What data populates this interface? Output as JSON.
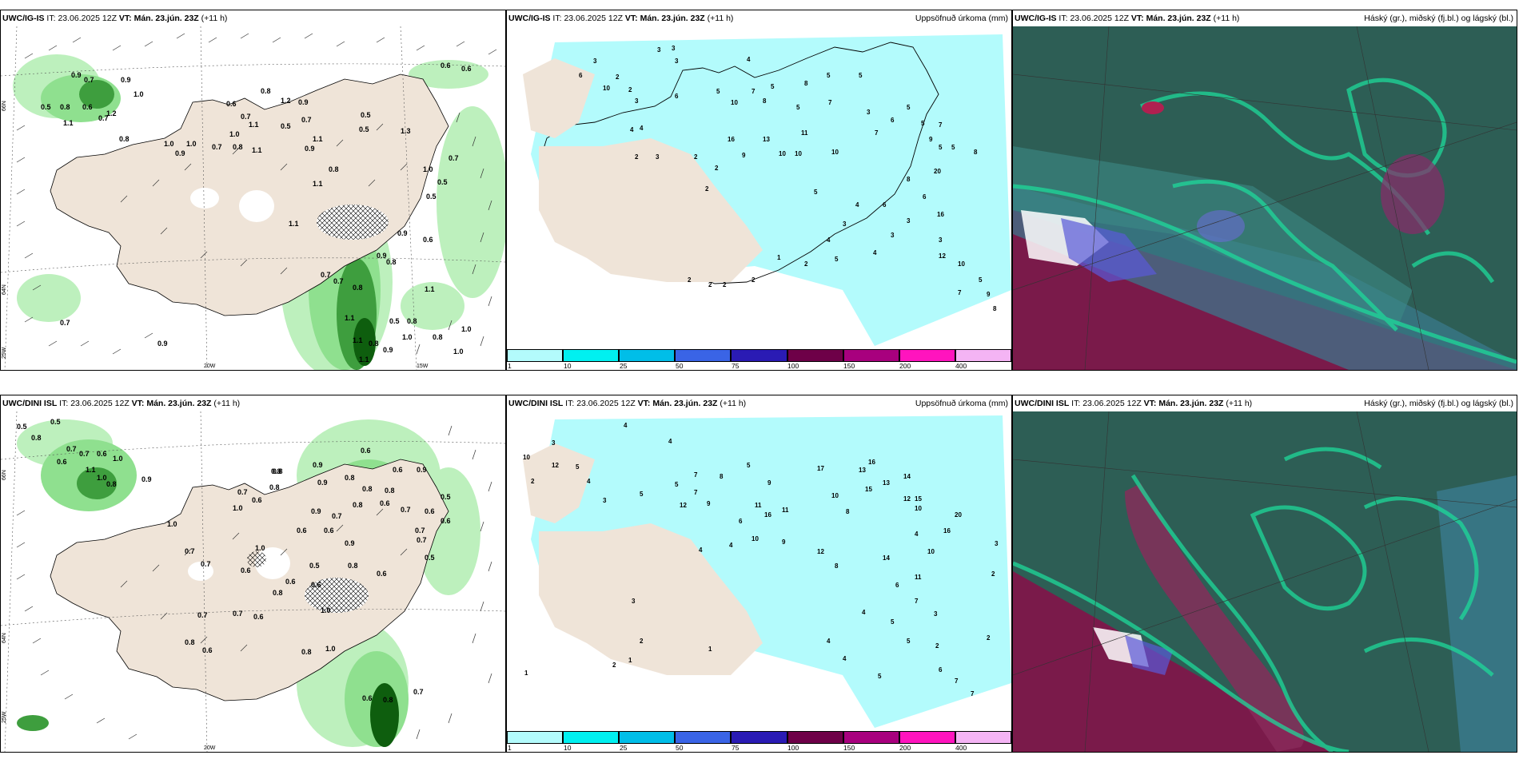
{
  "panels": {
    "tl": {
      "model": "UWC/IG-IS",
      "it_label": "IT:",
      "it_value": "23.06.2025 12Z",
      "vt_label": "VT:",
      "vt_value": "Mán. 23.jún. 23Z",
      "lead": "(+11 h)",
      "right_title": ""
    },
    "tm": {
      "model": "UWC/IG-IS",
      "it_label": "IT:",
      "it_value": "23.06.2025 12Z",
      "vt_label": "VT:",
      "vt_value": "Mán. 23.jún. 23Z",
      "lead": "(+11 h)",
      "right_title": "Uppsöfnuð úrkoma (mm)"
    },
    "tr": {
      "model": "UWC/IG-IS",
      "it_label": "IT:",
      "it_value": "23.06.2025 12Z",
      "vt_label": "VT:",
      "vt_value": "Mán. 23.jún. 23Z",
      "lead": "(+11 h)",
      "right_title": "Háský (gr.), miðský (fj.bl.) og lágský (bl.)"
    },
    "bl": {
      "model": "UWC/DINI ISL",
      "it_label": "IT:",
      "it_value": "23.06.2025 12Z",
      "vt_label": "VT:",
      "vt_value": "Mán. 23.jún. 23Z",
      "lead": "(+11 h)",
      "right_title": ""
    },
    "bm": {
      "model": "UWC/DINI ISL",
      "it_label": "IT:",
      "it_value": "23.06.2025 12Z",
      "vt_label": "VT:",
      "vt_value": "Mán. 23.jún. 23Z",
      "lead": "(+11 h)",
      "right_title": "Uppsöfnuð úrkoma (mm)"
    },
    "br": {
      "model": "UWC/DINI ISL",
      "it_label": "IT:",
      "it_value": "23.06.2025 12Z",
      "vt_label": "VT:",
      "vt_value": "Mán. 23.jún. 23Z",
      "lead": "(+11 h)",
      "right_title": "Háský (gr.), miðský (fj.bl.) og lágský (bl.)"
    }
  },
  "colorbar": {
    "ticks": [
      "1",
      "10",
      "25",
      "50",
      "75",
      "100",
      "150",
      "200",
      "400"
    ],
    "colors": [
      "#b3fbfc",
      "#00f0f0",
      "#00bee8",
      "#3a64e6",
      "#2a1bb4",
      "#6e0048",
      "#a8007e",
      "#ff14be",
      "#f4b4f4"
    ]
  },
  "axis_labels": {
    "lat_66": "66N",
    "lat_64": "64N",
    "lon_25": "25W",
    "lon_20": "20W",
    "lon_15": "15W"
  },
  "values": {
    "tl": [
      "0.9",
      "0.7",
      "0.9",
      "1.0",
      "0.5",
      "0.8",
      "0.6",
      "1.2",
      "0.7",
      "1.1",
      "0.8",
      "0.8",
      "0.6",
      "1.2",
      "0.9",
      "0.5",
      "0.7",
      "0.7",
      "0.5",
      "1.1",
      "1.3",
      "1.0",
      "1.0",
      "1.0",
      "0.9",
      "0.7",
      "0.8",
      "1.1",
      "0.9",
      "0.8",
      "1.1",
      "1.1",
      "0.5",
      "1.0",
      "0.5",
      "1.1",
      "0.7",
      "0.9",
      "0.5",
      "0.6",
      "0.7",
      "0.9",
      "0.7",
      "0.8",
      "0.8",
      "1.1",
      "1.1",
      "1.1",
      "0.8",
      "1.1",
      "0.9",
      "0.5",
      "0.8",
      "0.8",
      "1.0",
      "1.0",
      "1.0",
      "0.6",
      "0.6",
      "0.7",
      "0.9"
    ],
    "tm": [
      "3",
      "3",
      "3",
      "2",
      "3",
      "4",
      "6",
      "10",
      "2",
      "3",
      "6",
      "5",
      "7",
      "5",
      "8",
      "5",
      "5",
      "10",
      "8",
      "5",
      "7",
      "16",
      "13",
      "11",
      "9",
      "10",
      "10",
      "10",
      "3",
      "6",
      "7",
      "4",
      "2",
      "3",
      "4",
      "2",
      "2",
      "2",
      "5",
      "9",
      "5",
      "20",
      "5",
      "7",
      "5",
      "8",
      "8",
      "6",
      "16",
      "3",
      "3",
      "12",
      "10",
      "3",
      "4",
      "1",
      "2",
      "2",
      "2",
      "2",
      "3",
      "4",
      "2",
      "5",
      "5",
      "9",
      "8",
      "7",
      "4",
      "5",
      "6"
    ],
    "bl": [
      "0.5",
      "0.5",
      "0.8",
      "0.7",
      "0.7",
      "0.6",
      "1.0",
      "1.1",
      "1.0",
      "0.8",
      "0.6",
      "0.9",
      "1.0",
      "0.8",
      "0.9",
      "0.6",
      "0.9",
      "0.8",
      "0.8",
      "0.8",
      "0.6",
      "0.9",
      "0.8",
      "0.6",
      "0.7",
      "0.6",
      "0.6",
      "0.7",
      "0.8",
      "0.5",
      "0.8",
      "0.7",
      "0.6",
      "1.0",
      "0.9",
      "0.7",
      "0.6",
      "0.6",
      "0.5",
      "0.7",
      "0.9",
      "0.8",
      "0.6",
      "1.0",
      "0.6",
      "0.5",
      "0.6",
      "0.6",
      "0.7",
      "0.7",
      "0.8",
      "1.0",
      "0.6",
      "0.7",
      "0.7",
      "0.8",
      "0.6",
      "0.8",
      "1.0",
      "0.6",
      "0.8",
      "0.7"
    ],
    "bm": [
      "4",
      "4",
      "3",
      "5",
      "4",
      "10",
      "12",
      "2",
      "5",
      "5",
      "7",
      "8",
      "5",
      "9",
      "7",
      "3",
      "12",
      "9",
      "11",
      "6",
      "16",
      "11",
      "17",
      "13",
      "16",
      "14",
      "15",
      "12",
      "13",
      "10",
      "8",
      "15",
      "10",
      "16",
      "20",
      "3",
      "2",
      "4",
      "4",
      "10",
      "9",
      "12",
      "8",
      "14",
      "4",
      "10",
      "11",
      "6",
      "7",
      "3",
      "4",
      "5",
      "5",
      "2",
      "3",
      "2",
      "2",
      "1",
      "1",
      "1",
      "4",
      "4",
      "5",
      "2",
      "6",
      "7",
      "7"
    ]
  }
}
